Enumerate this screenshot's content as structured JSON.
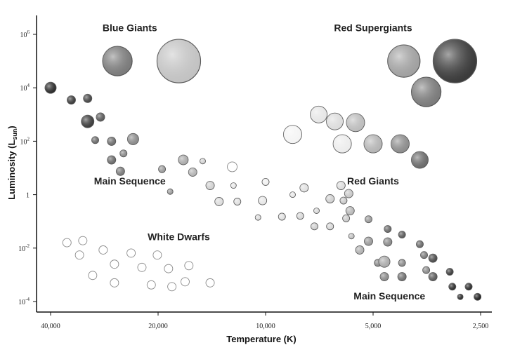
{
  "chart_data": {
    "type": "scatter",
    "title": "",
    "xlabel": "Temperature (K)",
    "ylabel_main": "Luminosity (L",
    "ylabel_sub": "sun",
    "ylabel_end": ")",
    "x_scale": "log-reversed",
    "y_scale": "log",
    "xlim": [
      45000,
      2250
    ],
    "ylim": [
      5e-05,
      1000000
    ],
    "x_ticks": [
      {
        "value": 40000,
        "label": "40,000"
      },
      {
        "value": 20000,
        "label": "20,000"
      },
      {
        "value": 10000,
        "label": "10,000"
      },
      {
        "value": 5000,
        "label": "5,000"
      },
      {
        "value": 2500,
        "label": "2,500"
      }
    ],
    "y_ticks": [
      {
        "value": 1000000,
        "base": "10",
        "exp": "6"
      },
      {
        "value": 10000,
        "base": "10",
        "exp": "4"
      },
      {
        "value": 100,
        "base": "10",
        "exp": "2"
      },
      {
        "value": 1,
        "base": "1",
        "exp": ""
      },
      {
        "value": 0.01,
        "base": "10",
        "exp": "-2"
      },
      {
        "value": 0.0001,
        "base": "10",
        "exp": "-4"
      }
    ],
    "grid": false,
    "legend": "none",
    "regions": [
      {
        "label": "Blue Giants",
        "temperature": 24000,
        "luminosity": 1300000
      },
      {
        "label": "Red Supergiants",
        "temperature": 5000,
        "luminosity": 1300000
      },
      {
        "label": "Red Giants",
        "temperature": 5000,
        "luminosity": 2.4
      },
      {
        "label": "Main Sequence",
        "temperature": 24000,
        "luminosity": 2.4
      },
      {
        "label": "White Dwarfs",
        "temperature": 17500,
        "luminosity": 0.02
      },
      {
        "label": "Main Sequence",
        "temperature": 4500,
        "luminosity": 0.00012
      }
    ],
    "stars": [
      {
        "group": "Blue Giants",
        "temperature": 26000,
        "luminosity": 100000,
        "radius": 21,
        "color": "#7a7a7a"
      },
      {
        "group": "Blue Giants",
        "temperature": 17500,
        "luminosity": 100000,
        "radius": 31,
        "color": "#c2c2c2"
      },
      {
        "group": "Red Supergiants",
        "temperature": 4100,
        "luminosity": 100000,
        "radius": 23,
        "color": "#a0a0a0"
      },
      {
        "group": "Red Supergiants",
        "temperature": 2950,
        "luminosity": 100000,
        "radius": 31,
        "color": "#3a3a3a"
      },
      {
        "group": "Red Supergiants",
        "temperature": 3550,
        "luminosity": 7000,
        "radius": 21,
        "color": "#7a7a7a"
      },
      {
        "group": "Red Giants",
        "temperature": 8400,
        "luminosity": 180,
        "radius": 13,
        "color": "#f4f4f4"
      },
      {
        "group": "Red Giants",
        "temperature": 7100,
        "luminosity": 1000,
        "radius": 12,
        "color": "#e6e6e6"
      },
      {
        "group": "Red Giants",
        "temperature": 6400,
        "luminosity": 550,
        "radius": 12,
        "color": "#dcdcdc"
      },
      {
        "group": "Red Giants",
        "temperature": 5600,
        "luminosity": 500,
        "radius": 13,
        "color": "#bcbcbc"
      },
      {
        "group": "Red Giants",
        "temperature": 6100,
        "luminosity": 80,
        "radius": 13,
        "color": "#ececec"
      },
      {
        "group": "Red Giants",
        "temperature": 5000,
        "luminosity": 80,
        "radius": 13,
        "color": "#b4b4b4"
      },
      {
        "group": "Red Giants",
        "temperature": 4200,
        "luminosity": 80,
        "radius": 13,
        "color": "#8c8c8c"
      },
      {
        "group": "Red Giants",
        "temperature": 3700,
        "luminosity": 20,
        "radius": 12,
        "color": "#6a6a6a"
      },
      {
        "group": "Main Sequence",
        "temperature": 40000,
        "luminosity": 10000,
        "radius": 8,
        "color": "#2a2a2a"
      },
      {
        "group": "Main Sequence",
        "temperature": 35000,
        "luminosity": 3500,
        "radius": 6,
        "color": "#3a3a3a"
      },
      {
        "group": "Main Sequence",
        "temperature": 31500,
        "luminosity": 4000,
        "radius": 6,
        "color": "#454545"
      },
      {
        "group": "Main Sequence",
        "temperature": 31500,
        "luminosity": 550,
        "radius": 9,
        "color": "#3c3c3c"
      },
      {
        "group": "Main Sequence",
        "temperature": 29000,
        "luminosity": 800,
        "radius": 6,
        "color": "#5a5a5a"
      },
      {
        "group": "Main Sequence",
        "temperature": 30000,
        "luminosity": 110,
        "radius": 5,
        "color": "#6a6a6a"
      },
      {
        "group": "Main Sequence",
        "temperature": 27000,
        "luminosity": 100,
        "radius": 6,
        "color": "#6e6e6e"
      },
      {
        "group": "Main Sequence",
        "temperature": 23500,
        "luminosity": 120,
        "radius": 8,
        "color": "#8a8a8a"
      },
      {
        "group": "Main Sequence",
        "temperature": 27000,
        "luminosity": 20,
        "radius": 6,
        "color": "#6a6a6a"
      },
      {
        "group": "Main Sequence",
        "temperature": 25000,
        "luminosity": 35,
        "radius": 5,
        "color": "#8a8a8a"
      },
      {
        "group": "Main Sequence",
        "temperature": 25500,
        "luminosity": 7.5,
        "radius": 6,
        "color": "#7a7a7a"
      },
      {
        "group": "Main Sequence",
        "temperature": 19500,
        "luminosity": 9,
        "radius": 5,
        "color": "#9a9a9a"
      },
      {
        "group": "Main Sequence",
        "temperature": 17000,
        "luminosity": 20,
        "radius": 7,
        "color": "#aaaaaa"
      },
      {
        "group": "Main Sequence",
        "temperature": 16000,
        "luminosity": 7,
        "radius": 6,
        "color": "#b4b4b4"
      },
      {
        "group": "Main Sequence",
        "temperature": 18500,
        "luminosity": 1.3,
        "radius": 4,
        "color": "#9a9a9a"
      },
      {
        "group": "Main Sequence",
        "temperature": 15000,
        "luminosity": 18,
        "radius": 4,
        "color": "#d0d0d0"
      },
      {
        "group": "Main Sequence",
        "temperature": 14300,
        "luminosity": 2.2,
        "radius": 6,
        "color": "#d0d0d0"
      },
      {
        "group": "Main Sequence",
        "temperature": 12400,
        "luminosity": 11,
        "radius": 7,
        "color": "#ffffff"
      },
      {
        "group": "Main Sequence",
        "temperature": 12300,
        "luminosity": 2.2,
        "radius": 4,
        "color": "#e8e8e8"
      },
      {
        "group": "Main Sequence",
        "temperature": 13500,
        "luminosity": 0.55,
        "radius": 6,
        "color": "#dcdcdc"
      },
      {
        "group": "Main Sequence",
        "temperature": 12000,
        "luminosity": 0.55,
        "radius": 5,
        "color": "#e0e0e0"
      },
      {
        "group": "Main Sequence",
        "temperature": 10000,
        "luminosity": 3,
        "radius": 5,
        "color": "#f0f0f0"
      },
      {
        "group": "Main Sequence",
        "temperature": 10200,
        "luminosity": 0.6,
        "radius": 6,
        "color": "#e6e6e6"
      },
      {
        "group": "Main Sequence",
        "temperature": 10500,
        "luminosity": 0.14,
        "radius": 4,
        "color": "#dcdcdc"
      },
      {
        "group": "Main Sequence",
        "temperature": 9000,
        "luminosity": 0.15,
        "radius": 5,
        "color": "#e0e0e0"
      },
      {
        "group": "Main Sequence",
        "temperature": 8400,
        "luminosity": 1,
        "radius": 4,
        "color": "#e8e8e8"
      },
      {
        "group": "Main Sequence",
        "temperature": 7800,
        "luminosity": 1.8,
        "radius": 6,
        "color": "#e0e0e0"
      },
      {
        "group": "Main Sequence",
        "temperature": 8000,
        "luminosity": 0.16,
        "radius": 5,
        "color": "#d6d6d6"
      },
      {
        "group": "Main Sequence",
        "temperature": 7200,
        "luminosity": 0.25,
        "radius": 4,
        "color": "#d8d8d8"
      },
      {
        "group": "Main Sequence",
        "temperature": 7300,
        "luminosity": 0.065,
        "radius": 5,
        "color": "#cfcfcf"
      },
      {
        "group": "Main Sequence",
        "temperature": 6600,
        "luminosity": 0.7,
        "radius": 6,
        "color": "#d0d0d0"
      },
      {
        "group": "Main Sequence",
        "temperature": 6600,
        "luminosity": 0.065,
        "radius": 5,
        "color": "#d6d6d6"
      },
      {
        "group": "Main Sequence",
        "temperature": 6150,
        "luminosity": 2.2,
        "radius": 6,
        "color": "#dcdcdc"
      },
      {
        "group": "Main Sequence",
        "temperature": 6050,
        "luminosity": 0.6,
        "radius": 5,
        "color": "#c8c8c8"
      },
      {
        "group": "Main Sequence",
        "temperature": 5850,
        "luminosity": 1.1,
        "radius": 6,
        "color": "#c8c8c8"
      },
      {
        "group": "Main Sequence",
        "temperature": 5800,
        "luminosity": 0.25,
        "radius": 6,
        "color": "#b8b8b8"
      },
      {
        "group": "Main Sequence",
        "temperature": 5950,
        "luminosity": 0.13,
        "radius": 5,
        "color": "#cacaca"
      },
      {
        "group": "Main Sequence",
        "temperature": 5750,
        "luminosity": 0.028,
        "radius": 4,
        "color": "#c0c0c0"
      },
      {
        "group": "Main Sequence",
        "temperature": 5450,
        "luminosity": 0.0085,
        "radius": 6,
        "color": "#b0b0b0"
      },
      {
        "group": "Main Sequence",
        "temperature": 5150,
        "luminosity": 0.12,
        "radius": 5,
        "color": "#9a9a9a"
      },
      {
        "group": "Main Sequence",
        "temperature": 5150,
        "luminosity": 0.018,
        "radius": 6,
        "color": "#9a9a9a"
      },
      {
        "group": "Main Sequence",
        "temperature": 4850,
        "luminosity": 0.0028,
        "radius": 5,
        "color": "#8a8a8a"
      },
      {
        "group": "Main Sequence",
        "temperature": 4550,
        "luminosity": 0.052,
        "radius": 5,
        "color": "#6a6a6a"
      },
      {
        "group": "Main Sequence",
        "temperature": 4550,
        "luminosity": 0.017,
        "radius": 6,
        "color": "#8a8a8a"
      },
      {
        "group": "Main Sequence",
        "temperature": 4650,
        "luminosity": 0.0031,
        "radius": 8,
        "color": "#aaaaaa"
      },
      {
        "group": "Main Sequence",
        "temperature": 4650,
        "luminosity": 0.00085,
        "radius": 6,
        "color": "#8a8a8a"
      },
      {
        "group": "Main Sequence",
        "temperature": 4150,
        "luminosity": 0.032,
        "radius": 5,
        "color": "#5a5a5a"
      },
      {
        "group": "Main Sequence",
        "temperature": 4150,
        "luminosity": 0.0028,
        "radius": 5,
        "color": "#8a8a8a"
      },
      {
        "group": "Main Sequence",
        "temperature": 4150,
        "luminosity": 0.00085,
        "radius": 6,
        "color": "#707070"
      },
      {
        "group": "Main Sequence",
        "temperature": 3700,
        "luminosity": 0.014,
        "radius": 5,
        "color": "#6a6a6a"
      },
      {
        "group": "Main Sequence",
        "temperature": 3600,
        "luminosity": 0.0055,
        "radius": 5,
        "color": "#7a7a7a"
      },
      {
        "group": "Main Sequence",
        "temperature": 3550,
        "luminosity": 0.0015,
        "radius": 5,
        "color": "#8a8a8a"
      },
      {
        "group": "Main Sequence",
        "temperature": 3400,
        "luminosity": 0.0042,
        "radius": 6,
        "color": "#4a4a4a"
      },
      {
        "group": "Main Sequence",
        "temperature": 3400,
        "luminosity": 0.00085,
        "radius": 6,
        "color": "#5a5a5a"
      },
      {
        "group": "Main Sequence",
        "temperature": 3050,
        "luminosity": 0.0013,
        "radius": 5,
        "color": "#3a3a3a"
      },
      {
        "group": "Main Sequence",
        "temperature": 3000,
        "luminosity": 0.00036,
        "radius": 5,
        "color": "#2a2a2a"
      },
      {
        "group": "Main Sequence",
        "temperature": 2850,
        "luminosity": 0.00015,
        "radius": 4,
        "color": "#2a2a2a"
      },
      {
        "group": "Main Sequence",
        "temperature": 2700,
        "luminosity": 0.00036,
        "radius": 5,
        "color": "#2a2a2a"
      },
      {
        "group": "Main Sequence",
        "temperature": 2550,
        "luminosity": 0.00015,
        "radius": 5,
        "color": "#1e1e1e"
      },
      {
        "group": "White Dwarfs",
        "temperature": 36000,
        "luminosity": 0.016,
        "radius": 6,
        "color": "#ffffff"
      },
      {
        "group": "White Dwarfs",
        "temperature": 32500,
        "luminosity": 0.019,
        "radius": 6,
        "color": "#ffffff"
      },
      {
        "group": "White Dwarfs",
        "temperature": 33200,
        "luminosity": 0.0055,
        "radius": 6,
        "color": "#ffffff"
      },
      {
        "group": "White Dwarfs",
        "temperature": 28500,
        "luminosity": 0.0085,
        "radius": 6,
        "color": "#ffffff"
      },
      {
        "group": "White Dwarfs",
        "temperature": 23800,
        "luminosity": 0.0065,
        "radius": 6,
        "color": "#ffffff"
      },
      {
        "group": "White Dwarfs",
        "temperature": 20100,
        "luminosity": 0.0055,
        "radius": 6,
        "color": "#ffffff"
      },
      {
        "group": "White Dwarfs",
        "temperature": 26500,
        "luminosity": 0.0025,
        "radius": 6,
        "color": "#ffffff"
      },
      {
        "group": "White Dwarfs",
        "temperature": 22200,
        "luminosity": 0.0019,
        "radius": 6,
        "color": "#ffffff"
      },
      {
        "group": "White Dwarfs",
        "temperature": 18700,
        "luminosity": 0.0017,
        "radius": 6,
        "color": "#ffffff"
      },
      {
        "group": "White Dwarfs",
        "temperature": 16400,
        "luminosity": 0.0022,
        "radius": 6,
        "color": "#ffffff"
      },
      {
        "group": "White Dwarfs",
        "temperature": 30500,
        "luminosity": 0.00095,
        "radius": 6,
        "color": "#ffffff"
      },
      {
        "group": "White Dwarfs",
        "temperature": 26500,
        "luminosity": 0.0005,
        "radius": 6,
        "color": "#ffffff"
      },
      {
        "group": "White Dwarfs",
        "temperature": 20900,
        "luminosity": 0.00042,
        "radius": 6,
        "color": "#ffffff"
      },
      {
        "group": "White Dwarfs",
        "temperature": 18300,
        "luminosity": 0.00036,
        "radius": 6,
        "color": "#ffffff"
      },
      {
        "group": "White Dwarfs",
        "temperature": 16800,
        "luminosity": 0.00055,
        "radius": 6,
        "color": "#ffffff"
      },
      {
        "group": "White Dwarfs",
        "temperature": 14300,
        "luminosity": 0.0005,
        "radius": 6,
        "color": "#ffffff"
      }
    ]
  }
}
